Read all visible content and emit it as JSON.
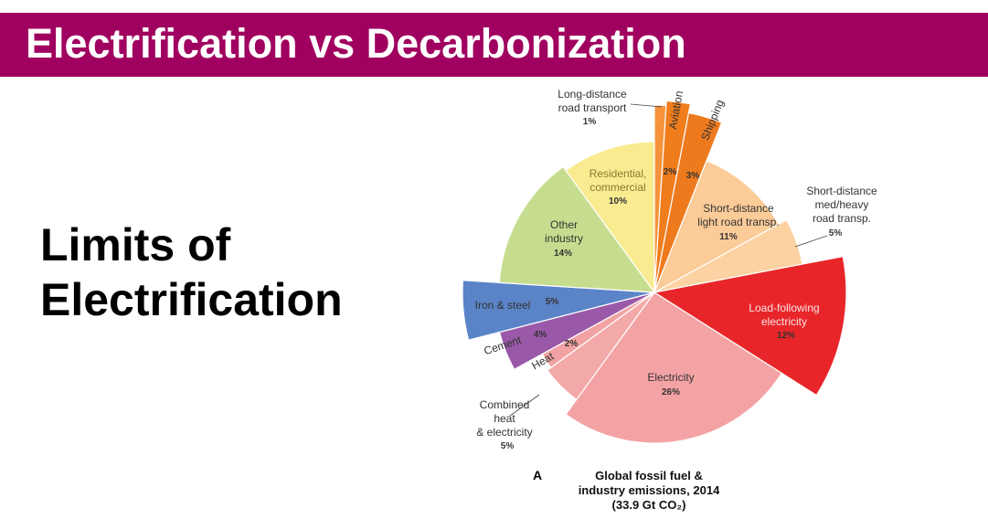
{
  "slide_title": "Electrification vs Decarbonization",
  "heading": "Limits of\nElectrification",
  "chart_data": {
    "type": "pie",
    "panel_label": "A",
    "title": "Global fossil fuel &\nindustry emissions, 2014\n(33.9 Gt CO₂)",
    "categories": [
      "Long-distance\nroad transport",
      "Aviation",
      "Shipping",
      "Short-distance\nlight road transp.",
      "Short-distance\nmed/heavy\nroad transp.",
      "Load-following\nelectricity",
      "Electricity",
      "Combined\nheat\n& electricity",
      "Heat",
      "Cement",
      "Iron & steel",
      "Other\nindustry",
      "Residential,\ncommercial"
    ],
    "values": [
      1,
      2,
      3,
      11,
      5,
      12,
      26,
      5,
      2,
      4,
      5,
      14,
      10
    ],
    "value_labels": [
      "1%",
      "2%",
      "3%",
      "11%",
      "5%",
      "12%",
      "26%",
      "5%",
      "2%",
      "4%",
      "5%",
      "14%",
      "10%"
    ],
    "colors": [
      "#f5923a",
      "#f07d1c",
      "#ee7a1e",
      "#fbcb98",
      "#fdd2a2",
      "#e8262a",
      "#f4a3a5",
      "#f4a9a9",
      "#f3a2a4",
      "#9a58a8",
      "#5b84c8",
      "#c6dd8f",
      "#f8eb90"
    ]
  }
}
